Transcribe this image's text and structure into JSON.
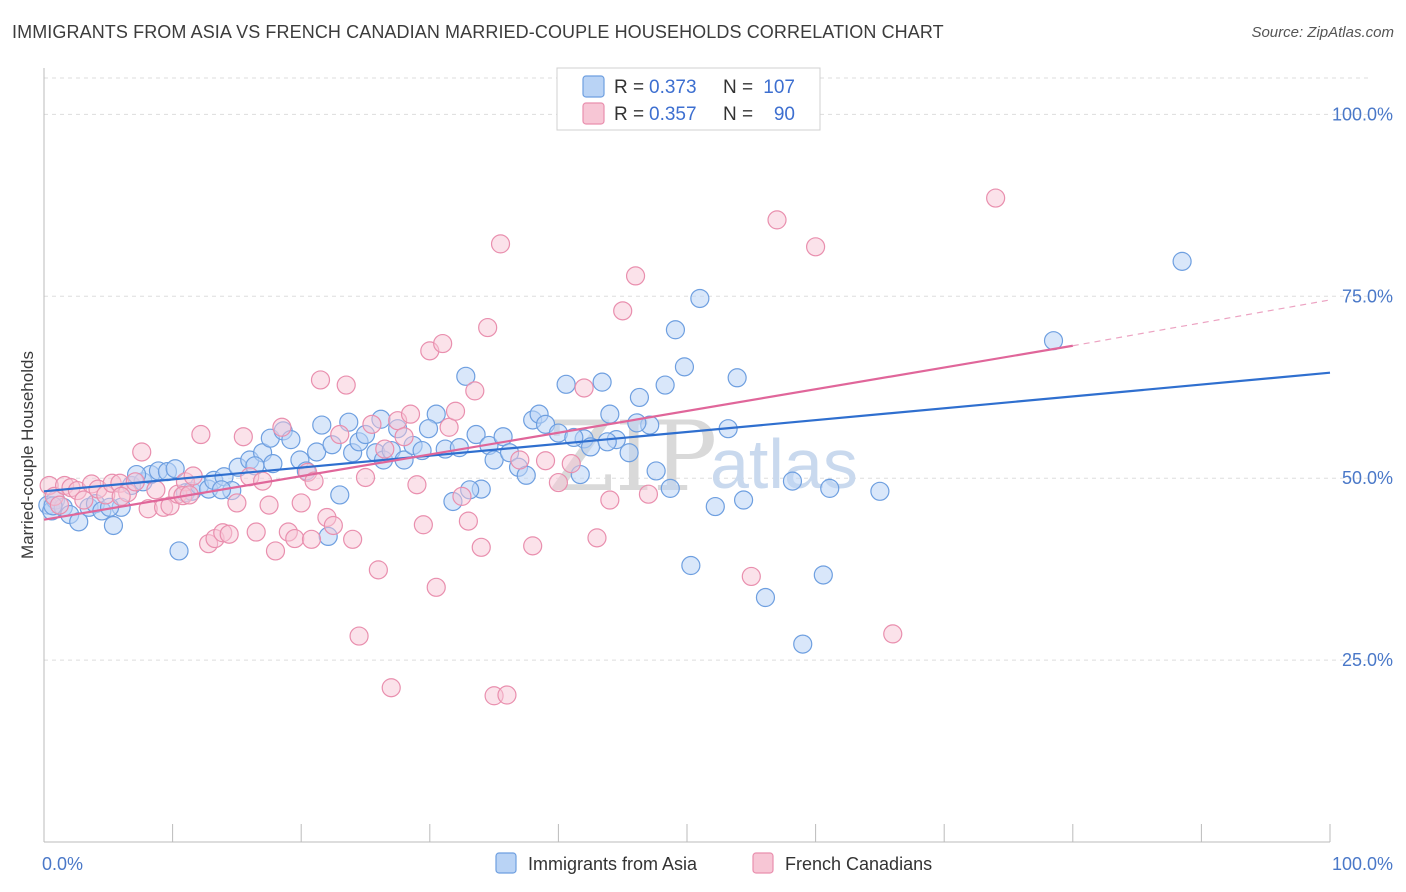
{
  "title": "IMMIGRANTS FROM ASIA VS FRENCH CANADIAN MARRIED-COUPLE HOUSEHOLDS CORRELATION CHART",
  "source": "Source: ZipAtlas.com",
  "watermark": {
    "zip": "ZIP",
    "atlas": "atlas"
  },
  "colors": {
    "blue_fill": "#b9d3f5",
    "blue_stroke": "#6e9fe0",
    "blue_line": "#2f6fcf",
    "pink_fill": "#f7c6d5",
    "pink_stroke": "#e98fae",
    "pink_line": "#e0669a",
    "axis_text": "#4a78c8",
    "grid": "#dddddd"
  },
  "legend": {
    "rows": [
      {
        "r_label": "R = ",
        "r_value": "0.373",
        "n_label": "N = ",
        "n_value": "107"
      },
      {
        "r_label": "R = ",
        "r_value": "0.357",
        "n_label": "N = ",
        "n_value": "90"
      }
    ]
  },
  "chart_data": {
    "type": "scatter",
    "title": "IMMIGRANTS FROM ASIA VS FRENCH CANADIAN MARRIED-COUPLE HOUSEHOLDS CORRELATION CHART",
    "xlabel": "",
    "ylabel": "Married-couple Households",
    "xlim": [
      0,
      100
    ],
    "ylim": [
      0,
      105
    ],
    "x_tick_labels": [
      "0.0%",
      "100.0%"
    ],
    "y_ticks": [
      25,
      50,
      75,
      100
    ],
    "y_tick_labels": [
      "25.0%",
      "50.0%",
      "75.0%",
      "100.0%"
    ],
    "grid": true,
    "legend_position": "top-center",
    "series": [
      {
        "name": "Immigrants from Asia",
        "trend": {
          "x0": 0,
          "y0": 48.2,
          "x1": 100,
          "y1": 64.5
        },
        "points": [
          [
            0.3,
            46.3
          ],
          [
            0.6,
            45.5
          ],
          [
            0.9,
            47
          ],
          [
            1.5,
            46
          ],
          [
            2,
            45
          ],
          [
            2.7,
            44
          ],
          [
            3.5,
            46
          ],
          [
            4,
            46.5
          ],
          [
            4.5,
            45.5
          ],
          [
            5.4,
            43.5
          ],
          [
            6,
            46
          ],
          [
            6.8,
            49
          ],
          [
            7.7,
            49.5
          ],
          [
            8.3,
            50.5
          ],
          [
            8.9,
            51
          ],
          [
            9.6,
            50.9
          ],
          [
            10.2,
            51.3
          ],
          [
            11,
            48
          ],
          [
            11.5,
            48.2
          ],
          [
            12.1,
            49
          ],
          [
            12.8,
            48.5
          ],
          [
            13.2,
            49.7
          ],
          [
            14,
            50.2
          ],
          [
            14.6,
            48.3
          ],
          [
            15.1,
            51.5
          ],
          [
            16,
            52.5
          ],
          [
            17,
            53.5
          ],
          [
            17.6,
            55.5
          ],
          [
            18.6,
            56.5
          ],
          [
            19.2,
            55.3
          ],
          [
            17.8,
            52
          ],
          [
            19.9,
            52.5
          ],
          [
            20.4,
            51
          ],
          [
            21.2,
            53.6
          ],
          [
            21.6,
            57.3
          ],
          [
            22.4,
            54.6
          ],
          [
            23,
            47.7
          ],
          [
            23.7,
            57.7
          ],
          [
            24,
            53.5
          ],
          [
            24.5,
            55
          ],
          [
            25,
            56
          ],
          [
            25.8,
            53.5
          ],
          [
            26.4,
            52.5
          ],
          [
            27,
            53.8
          ],
          [
            27.5,
            56.8
          ],
          [
            28,
            52.5
          ],
          [
            28.7,
            54.5
          ],
          [
            29.4,
            53.8
          ],
          [
            30.5,
            58.8
          ],
          [
            31.2,
            54
          ],
          [
            31.8,
            46.8
          ],
          [
            32.3,
            54.2
          ],
          [
            32.8,
            64
          ],
          [
            33.6,
            56
          ],
          [
            34,
            48.5
          ],
          [
            34.6,
            54.5
          ],
          [
            35,
            52.5
          ],
          [
            35.7,
            55.7
          ],
          [
            36.2,
            53.5
          ],
          [
            36.9,
            51.5
          ],
          [
            37.5,
            50.4
          ],
          [
            38,
            58
          ],
          [
            38.5,
            58.8
          ],
          [
            39,
            57.4
          ],
          [
            40,
            56.2
          ],
          [
            40.6,
            62.9
          ],
          [
            41.7,
            50.5
          ],
          [
            42,
            55.4
          ],
          [
            42.5,
            54.3
          ],
          [
            43.4,
            63.2
          ],
          [
            44,
            58.8
          ],
          [
            44.5,
            55.3
          ],
          [
            45.5,
            53.5
          ],
          [
            46.3,
            61.1
          ],
          [
            47.1,
            57.3
          ],
          [
            48.3,
            62.8
          ],
          [
            48.7,
            48.6
          ],
          [
            49.1,
            70.4
          ],
          [
            49.8,
            65.3
          ],
          [
            50.3,
            38
          ],
          [
            51,
            74.7
          ],
          [
            52.2,
            46.1
          ],
          [
            53.2,
            56.8
          ],
          [
            53.9,
            63.8
          ],
          [
            54.4,
            47
          ],
          [
            56.1,
            33.6
          ],
          [
            58.2,
            49.6
          ],
          [
            59,
            27.2
          ],
          [
            60.6,
            36.7
          ],
          [
            61.1,
            48.6
          ],
          [
            65,
            48.2
          ],
          [
            78.5,
            68.9
          ],
          [
            88.5,
            79.8
          ],
          [
            0.7,
            46.2
          ],
          [
            5.1,
            46
          ],
          [
            7.2,
            50.5
          ],
          [
            10.5,
            40
          ],
          [
            13.8,
            48.4
          ],
          [
            16.4,
            51.7
          ],
          [
            22.1,
            42
          ],
          [
            26.2,
            58.1
          ],
          [
            29.9,
            56.8
          ],
          [
            33.1,
            48.4
          ],
          [
            41.2,
            55.6
          ],
          [
            43.8,
            55
          ],
          [
            46.1,
            57.6
          ],
          [
            47.6,
            51
          ]
        ]
      },
      {
        "name": "French Canadians",
        "trend": {
          "x0": 0,
          "y0": 44.3,
          "x1": 80,
          "y1": 68.2,
          "dash_x1": 100,
          "dash_y1": 74.5
        },
        "points": [
          [
            0.4,
            49
          ],
          [
            0.8,
            47.5
          ],
          [
            1.2,
            46.3
          ],
          [
            1.6,
            49
          ],
          [
            2.1,
            48.7
          ],
          [
            2.6,
            48.3
          ],
          [
            3.1,
            47
          ],
          [
            3.7,
            49.2
          ],
          [
            4.2,
            48.5
          ],
          [
            4.8,
            47.7
          ],
          [
            5.3,
            49.3
          ],
          [
            5.9,
            49.3
          ],
          [
            6.5,
            48
          ],
          [
            7.1,
            49.5
          ],
          [
            7.6,
            53.6
          ],
          [
            8.1,
            45.8
          ],
          [
            8.7,
            48.4
          ],
          [
            9.3,
            46
          ],
          [
            9.8,
            46.2
          ],
          [
            10.4,
            47.8
          ],
          [
            11,
            49.5
          ],
          [
            11.6,
            50.3
          ],
          [
            12.2,
            56
          ],
          [
            12.8,
            41
          ],
          [
            13.3,
            41.7
          ],
          [
            13.9,
            42.5
          ],
          [
            14.4,
            42.3
          ],
          [
            15,
            46.6
          ],
          [
            15.5,
            55.7
          ],
          [
            16,
            50.2
          ],
          [
            16.5,
            42.6
          ],
          [
            17,
            49.6
          ],
          [
            17.5,
            46.3
          ],
          [
            18,
            40
          ],
          [
            18.5,
            57
          ],
          [
            19,
            42.6
          ],
          [
            19.5,
            41.7
          ],
          [
            20,
            46.6
          ],
          [
            20.5,
            50.8
          ],
          [
            21,
            49.6
          ],
          [
            21.5,
            63.5
          ],
          [
            22,
            44.6
          ],
          [
            22.5,
            43.5
          ],
          [
            23,
            56
          ],
          [
            23.5,
            62.8
          ],
          [
            24,
            41.6
          ],
          [
            24.5,
            28.3
          ],
          [
            25,
            50.1
          ],
          [
            25.5,
            57.4
          ],
          [
            26,
            37.4
          ],
          [
            26.5,
            54
          ],
          [
            27,
            21.2
          ],
          [
            27.5,
            57.9
          ],
          [
            28,
            55.7
          ],
          [
            28.5,
            58.8
          ],
          [
            29,
            49.1
          ],
          [
            29.5,
            43.6
          ],
          [
            30,
            67.5
          ],
          [
            30.5,
            35
          ],
          [
            31,
            68.5
          ],
          [
            31.5,
            57
          ],
          [
            32,
            59.2
          ],
          [
            32.5,
            47.5
          ],
          [
            33,
            44.1
          ],
          [
            33.5,
            62
          ],
          [
            34,
            40.5
          ],
          [
            34.5,
            70.7
          ],
          [
            35,
            20.1
          ],
          [
            35.5,
            82.2
          ],
          [
            36,
            20.2
          ],
          [
            37,
            52.5
          ],
          [
            38,
            40.7
          ],
          [
            39,
            52.4
          ],
          [
            40,
            49.4
          ],
          [
            41,
            52
          ],
          [
            42,
            62.4
          ],
          [
            43,
            41.8
          ],
          [
            44,
            47
          ],
          [
            45,
            73
          ],
          [
            46,
            77.8
          ],
          [
            47,
            47.8
          ],
          [
            55,
            36.5
          ],
          [
            57,
            85.5
          ],
          [
            60,
            81.8
          ],
          [
            66,
            28.6
          ],
          [
            74,
            88.5
          ],
          [
            6,
            47.5
          ],
          [
            10.8,
            47.6
          ],
          [
            11.3,
            47.7
          ],
          [
            20.8,
            41.6
          ]
        ]
      }
    ]
  }
}
